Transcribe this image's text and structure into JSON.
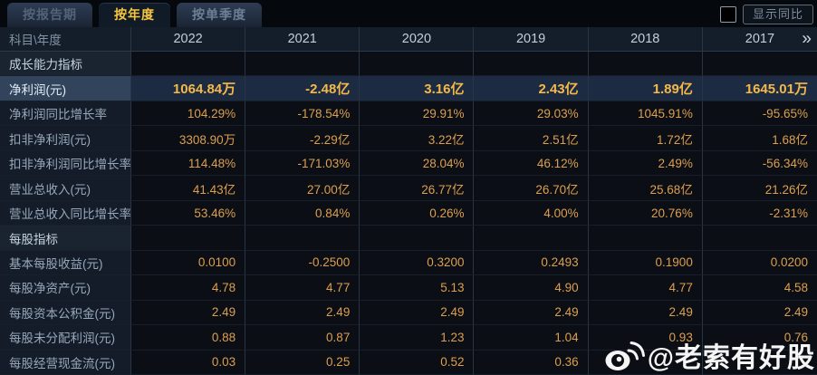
{
  "tabs": [
    {
      "label": "按报告期",
      "active": false
    },
    {
      "label": "按年度",
      "active": true
    },
    {
      "label": "按单季度",
      "active": false
    }
  ],
  "controls": {
    "show_yoy_label": "显示同比",
    "checkbox_checked": false
  },
  "table": {
    "corner_label": "科目\\年度",
    "years": [
      "2022",
      "2021",
      "2020",
      "2019",
      "2018",
      "2017"
    ],
    "more_years_icon": "»",
    "rows": [
      {
        "type": "section",
        "label": "成长能力指标",
        "values": [
          "",
          "",
          "",
          "",
          "",
          ""
        ]
      },
      {
        "type": "highlight",
        "label": "净利润(元)",
        "values": [
          "1064.84万",
          "-2.48亿",
          "3.16亿",
          "2.43亿",
          "1.89亿",
          "1645.01万"
        ]
      },
      {
        "type": "data",
        "label": "净利润同比增长率",
        "values": [
          "104.29%",
          "-178.54%",
          "29.91%",
          "29.03%",
          "1045.91%",
          "-95.65%"
        ]
      },
      {
        "type": "data",
        "label": "扣非净利润(元)",
        "values": [
          "3308.90万",
          "-2.29亿",
          "3.22亿",
          "2.51亿",
          "1.72亿",
          "1.68亿"
        ]
      },
      {
        "type": "data",
        "label": "扣非净利润同比增长率",
        "values": [
          "114.48%",
          "-171.03%",
          "28.04%",
          "46.12%",
          "2.49%",
          "-56.34%"
        ]
      },
      {
        "type": "data",
        "label": "营业总收入(元)",
        "values": [
          "41.43亿",
          "27.00亿",
          "26.77亿",
          "26.70亿",
          "25.68亿",
          "21.26亿"
        ]
      },
      {
        "type": "data",
        "label": "营业总收入同比增长率",
        "values": [
          "53.46%",
          "0.84%",
          "0.26%",
          "4.00%",
          "20.76%",
          "-2.31%"
        ]
      },
      {
        "type": "section",
        "label": "每股指标",
        "values": [
          "",
          "",
          "",
          "",
          "",
          ""
        ]
      },
      {
        "type": "data",
        "label": "基本每股收益(元)",
        "values": [
          "0.0100",
          "-0.2500",
          "0.3200",
          "0.2493",
          "0.1900",
          "0.0200"
        ]
      },
      {
        "type": "data",
        "label": "每股净资产(元)",
        "values": [
          "4.78",
          "4.77",
          "5.13",
          "4.90",
          "4.77",
          "4.58"
        ]
      },
      {
        "type": "data",
        "label": "每股资本公积金(元)",
        "values": [
          "2.49",
          "2.49",
          "2.49",
          "2.49",
          "2.49",
          "2.49"
        ]
      },
      {
        "type": "data",
        "label": "每股未分配利润(元)",
        "values": [
          "0.88",
          "0.87",
          "1.23",
          "1.04",
          "0.93",
          "0.76"
        ]
      },
      {
        "type": "data",
        "label": "每股经营现金流(元)",
        "values": [
          "0.03",
          "0.25",
          "0.52",
          "0.36",
          "",
          ""
        ]
      }
    ]
  },
  "watermark": {
    "text": "@老索有好股"
  },
  "colors": {
    "background": "#0a0e14",
    "tab_active_text": "#f6c63f",
    "value_orange": "#dc9f4e",
    "highlight_value_gold": "#f4b94a",
    "highlight_row_bg": "#1d2b42",
    "label_text": "#97a8ba",
    "header_text": "#c3ced8"
  }
}
